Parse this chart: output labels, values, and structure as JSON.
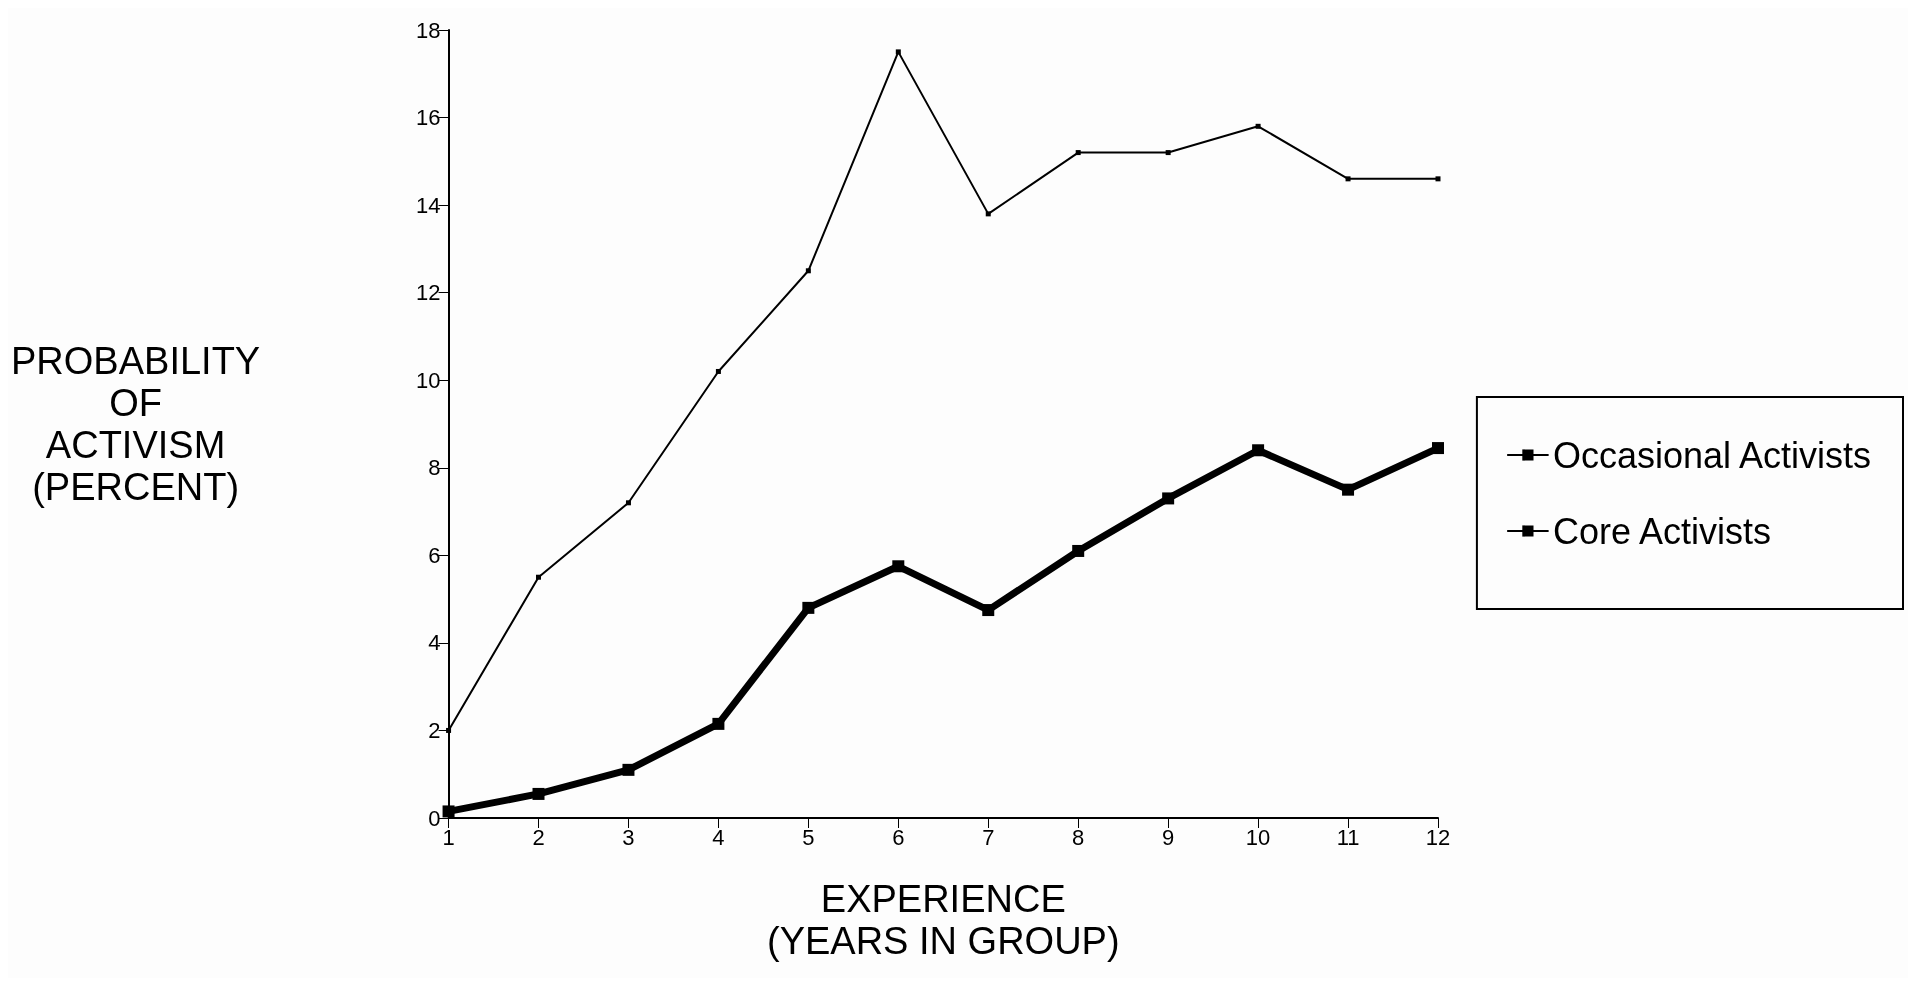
{
  "chart_data": {
    "type": "line",
    "xlabel": "EXPERIENCE\n(YEARS IN GROUP)",
    "ylabel": "PROBABILITY\nOF\nACTIVISM\n(PERCENT)",
    "x": [
      1,
      2,
      3,
      4,
      5,
      6,
      7,
      8,
      9,
      10,
      11,
      12
    ],
    "xlim": [
      1,
      12
    ],
    "xticks": [
      1,
      2,
      3,
      4,
      5,
      6,
      7,
      8,
      9,
      10,
      11,
      12
    ],
    "ylim": [
      0,
      18
    ],
    "yticks": [
      0,
      2,
      4,
      6,
      8,
      10,
      12,
      14,
      16,
      18
    ],
    "series": [
      {
        "name": "Occasional Activists",
        "color": "#000000",
        "values": [
          2.0,
          5.5,
          7.2,
          10.2,
          12.5,
          17.5,
          13.8,
          15.2,
          15.2,
          15.8,
          14.6,
          14.6
        ]
      },
      {
        "name": "Core Activists",
        "color": "#000000",
        "values": [
          0.15,
          0.55,
          1.1,
          2.15,
          4.8,
          5.75,
          4.75,
          6.1,
          7.3,
          8.4,
          7.5,
          8.45
        ]
      }
    ],
    "grid": false,
    "legend": "right",
    "marker": "square",
    "line_style": "solid"
  }
}
